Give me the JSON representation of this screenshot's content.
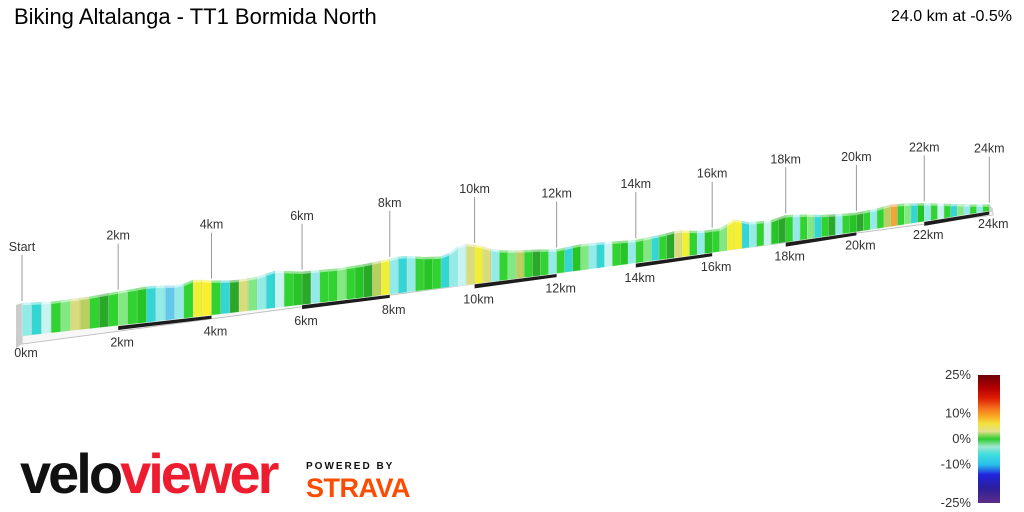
{
  "header": {
    "title": "Biking Altalanga - TT1 Bormida North",
    "summary": "24.0 km at -0.5%"
  },
  "logo": {
    "brand_black": "velo",
    "brand_red": "viewer",
    "powered_by": "POWERED BY",
    "strava": "STRAVA"
  },
  "colors": {
    "brand_red": "#ed1c2e",
    "strava_orange": "#fc4c02",
    "tick_line": "#999999",
    "base_dark_segment": "#1c1c1c",
    "base_platform": "#f7f7f7"
  },
  "chart_data": {
    "type": "area",
    "subtype": "3d-elevation-profile",
    "title": "Biking Altalanga - TT1 Bormida North",
    "total_km": 24.0,
    "avg_gradient_pct": -0.5,
    "x_axis": {
      "unit": "km",
      "min": 0,
      "max": 24
    },
    "tick_km": [
      0,
      2,
      4,
      6,
      8,
      10,
      12,
      14,
      16,
      18,
      20,
      22,
      24
    ],
    "x_ticks_top": [
      "Start",
      "2km",
      "4km",
      "6km",
      "8km",
      "10km",
      "12km",
      "14km",
      "16km",
      "18km",
      "20km",
      "22km",
      "24km"
    ],
    "x_ticks_bottom": [
      "0km",
      "2km",
      "4km",
      "6km",
      "8km",
      "10km",
      "12km",
      "14km",
      "16km",
      "18km",
      "20km",
      "22km",
      "24km"
    ],
    "dark_base_segments_km": [
      [
        2,
        4
      ],
      [
        6,
        8
      ],
      [
        10,
        12
      ],
      [
        14,
        16
      ],
      [
        18,
        20
      ],
      [
        22,
        24
      ]
    ],
    "bar_step_km": 0.2,
    "bar_colors": [
      "#93ebe8",
      "#34d6d4",
      "#c6f4f1",
      "#30d330",
      "#82e882",
      "#d8dc7d",
      "#b9cf5f",
      "#30d330",
      "#2aa82a",
      "#30d330",
      "#82e882",
      "#30d330",
      "#25c525",
      "#34d6d4",
      "#93ebe8",
      "#62c9ec",
      "#93ebe8",
      "#30d330",
      "#efef36",
      "#f8f02c",
      "#30d330",
      "#34d6d4",
      "#2aa82a",
      "#d8dc7d",
      "#82e882",
      "#93ebe8",
      "#34d6d4",
      "#c6f4f1",
      "#30d330",
      "#25c525",
      "#2aa82a",
      "#93ebe8",
      "#30d330",
      "#30d330",
      "#82e882",
      "#30d330",
      "#25c525",
      "#2aa82a",
      "#b9cf5f",
      "#efef36",
      "#93ebe8",
      "#34d6d4",
      "#93ebe8",
      "#30d330",
      "#25c525",
      "#30d330",
      "#34d6d4",
      "#93ebe8",
      "#c6f4f1",
      "#d8dc7d",
      "#efef36",
      "#d8dc7d",
      "#93ebe8",
      "#30d330",
      "#82e882",
      "#b9cf5f",
      "#30d330",
      "#2aa82a",
      "#30d330",
      "#93ebe8",
      "#30d330",
      "#34d6d4",
      "#25c525",
      "#82e882",
      "#93ebe8",
      "#34d6d4",
      "#c6f4f1",
      "#30d330",
      "#25c525",
      "#93ebe8",
      "#30d330",
      "#82e882",
      "#34d6d4",
      "#30d330",
      "#2aa82a",
      "#d8dc7d",
      "#efef36",
      "#30d330",
      "#93ebe8",
      "#25c525",
      "#30d330",
      "#82e882",
      "#efef36",
      "#f8f02c",
      "#34d6d4",
      "#93ebe8",
      "#30d330",
      "#c6f4f1",
      "#25c525",
      "#2aa82a",
      "#30d330",
      "#93ebe8",
      "#30d330",
      "#82e882",
      "#34d6d4",
      "#30d330",
      "#2aa82a",
      "#93ebe8",
      "#30d330",
      "#25c525",
      "#2aa82a",
      "#30d330",
      "#93ebe8",
      "#30d330",
      "#b9cf5f",
      "#f0a43c",
      "#30d330",
      "#82e882",
      "#34d6d4",
      "#25c525",
      "#93ebe8",
      "#30d330",
      "#c6f4f1",
      "#30d330",
      "#34d6d4",
      "#82e882",
      "#93ebe8",
      "#30d330",
      "#93ebe8",
      "#30d330"
    ],
    "relative_height_profile": [
      [
        0,
        33
      ],
      [
        0.6,
        31
      ],
      [
        1.4,
        32
      ],
      [
        2,
        34
      ],
      [
        2.7,
        36
      ],
      [
        3.3,
        33
      ],
      [
        3.65,
        38
      ],
      [
        3.9,
        35
      ],
      [
        4.5,
        32
      ],
      [
        5,
        33
      ],
      [
        5.4,
        37
      ],
      [
        6,
        33
      ],
      [
        6.8,
        32
      ],
      [
        7.4,
        33
      ],
      [
        7.9,
        35
      ],
      [
        8.3,
        37
      ],
      [
        8.8,
        33
      ],
      [
        9.3,
        31
      ],
      [
        9.7,
        42
      ],
      [
        10.1,
        38
      ],
      [
        10.5,
        31
      ],
      [
        11,
        28
      ],
      [
        11.6,
        26
      ],
      [
        12,
        24
      ],
      [
        12.6,
        26
      ],
      [
        13.2,
        25
      ],
      [
        14,
        23
      ],
      [
        14.7,
        25
      ],
      [
        15.1,
        27
      ],
      [
        15.7,
        23
      ],
      [
        16.2,
        23
      ],
      [
        16.6,
        30
      ],
      [
        17,
        25
      ],
      [
        17.6,
        24
      ],
      [
        18,
        27
      ],
      [
        18.5,
        25
      ],
      [
        19,
        22
      ],
      [
        19.6,
        20
      ],
      [
        20,
        19
      ],
      [
        20.6,
        20
      ],
      [
        21,
        22
      ],
      [
        21.6,
        20
      ],
      [
        22,
        18
      ],
      [
        22.5,
        15
      ],
      [
        23,
        12
      ],
      [
        23.5,
        9
      ],
      [
        24,
        6.5
      ]
    ],
    "legend": {
      "position": "bottom-right",
      "labels": [
        "25%",
        "10%",
        "0%",
        "-10%",
        "-25%"
      ],
      "values": [
        25,
        10,
        0,
        -10,
        -25
      ],
      "min_pct": -25,
      "max_pct": 25,
      "gradient_stops": [
        [
          0.0,
          "#6d0109"
        ],
        [
          0.1,
          "#b30000"
        ],
        [
          0.18,
          "#dd1c02"
        ],
        [
          0.26,
          "#f4711c"
        ],
        [
          0.33,
          "#f8b025"
        ],
        [
          0.38,
          "#f2e23c"
        ],
        [
          0.44,
          "#e3e08c"
        ],
        [
          0.5,
          "#2ecc2e"
        ],
        [
          0.56,
          "#9fe8cf"
        ],
        [
          0.62,
          "#40dede"
        ],
        [
          0.7,
          "#28c0ea"
        ],
        [
          0.78,
          "#2222dd"
        ],
        [
          0.88,
          "#2a1f9e"
        ],
        [
          1.0,
          "#5c2d86"
        ]
      ]
    }
  }
}
